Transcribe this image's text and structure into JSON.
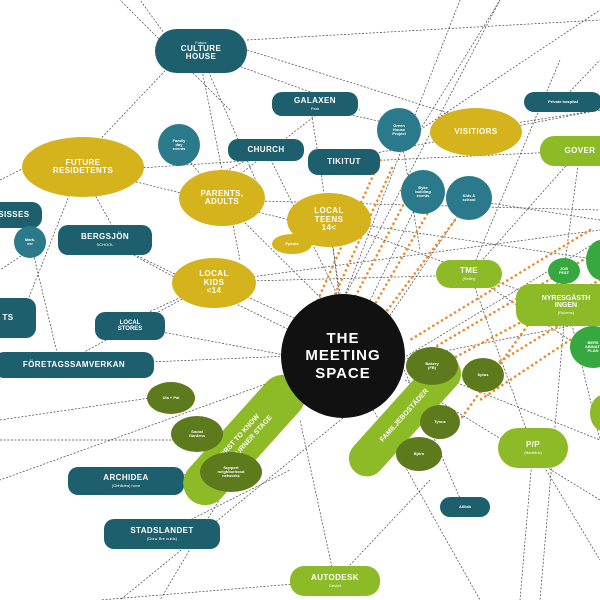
{
  "diagram": {
    "nodes": {
      "culture_house": {
        "title": "CULTURE\nHOUSE",
        "pre": "Future"
      },
      "galaxen": {
        "title": "GALAXEN",
        "sub": "Park"
      },
      "church": {
        "title": "CHURCH"
      },
      "tikitut": {
        "title": "TIKITUT"
      },
      "future_residents": {
        "title": "FUTURE\nRESIDETENTS"
      },
      "parents_adults": {
        "title": "PARENTS,\nADULTS"
      },
      "family_day": {
        "title": "Family\nday\nevents"
      },
      "local_teens": {
        "title": "LOCAL\nTEENS\n14<"
      },
      "green_house": {
        "title": "Green\nHouse\nProject"
      },
      "visitors": {
        "title": "VISITIORS"
      },
      "private_hospital": {
        "title": "Private hospital"
      },
      "gover": {
        "title": "GOVER"
      },
      "ssisses": {
        "title": "SSISSES"
      },
      "mark_ver": {
        "title": "Mark.\nver"
      },
      "bergsjon": {
        "title": "BERGSJÖN",
        "sub": "SCHOOL"
      },
      "ppeute": {
        "title": "Ppeute"
      },
      "local_kids": {
        "title": "LOCAL\nKIDS\n<14"
      },
      "bike_building": {
        "title": "Byke\nbuilding\nevents"
      },
      "kids_school": {
        "title": "Kids &\nschool"
      },
      "local_stores": {
        "title": "LOCAL\nSTORES"
      },
      "ts": {
        "title": "TS"
      },
      "foretagssamverkan": {
        "title": "FÖRETAGSSAMVERKAN"
      },
      "meeting_space": {
        "title": "THE\nMEETING\nSPACE"
      },
      "tme": {
        "title": "TME",
        "sub": "(Seller)"
      },
      "job_fest": {
        "title": "Job\nFEST"
      },
      "nyresgasthingen": {
        "title": "NYRESGÄSTH\nINGEN",
        "sub": "(Ruhens)"
      },
      "bers_plan": {
        "title": "BERS\nABINATI\nPLAN"
      },
      "right_edge": {
        "title": ""
      },
      "first_to_know": {
        "title": "FIRST TO KNOW\nTHE BURNER STAGE"
      },
      "ula_pal": {
        "title": "Ula + Pal"
      },
      "social_gardens": {
        "title": "Social\nGardens"
      },
      "support_neighborhood": {
        "title": "Support\nneighborhood\nnetworks"
      },
      "familjebostader": {
        "title": "FAMILJEBOSTÄDER"
      },
      "bakery": {
        "title": "Bakery\n(FB)"
      },
      "splus": {
        "title": "Splus"
      },
      "tyhus": {
        "title": "Tyhus"
      },
      "bjoro": {
        "title": "Björo"
      },
      "pp": {
        "title": "P/P",
        "sub": "(Backlink)"
      },
      "archidea": {
        "title": "ARCHIDEA",
        "sub": "(Gbhildea) hove"
      },
      "allliab": {
        "title": "Allliab"
      },
      "stadslandet": {
        "title": "STADSLANDET",
        "sub": "(Donz Bre nubis)"
      },
      "autodesk": {
        "title": "AUTODESK",
        "sub": "Gestell"
      }
    },
    "colors": {
      "teal": "#1e5f6e",
      "teal_circle": "#2b7a8c",
      "yellow": "#d4b31c",
      "green": "#8dbb27",
      "dark_green": "#5d7a1c",
      "bright_green": "#36a83f",
      "black": "#111111",
      "edge": "#444444",
      "dotted_edge": "#ee8a2e"
    }
  }
}
